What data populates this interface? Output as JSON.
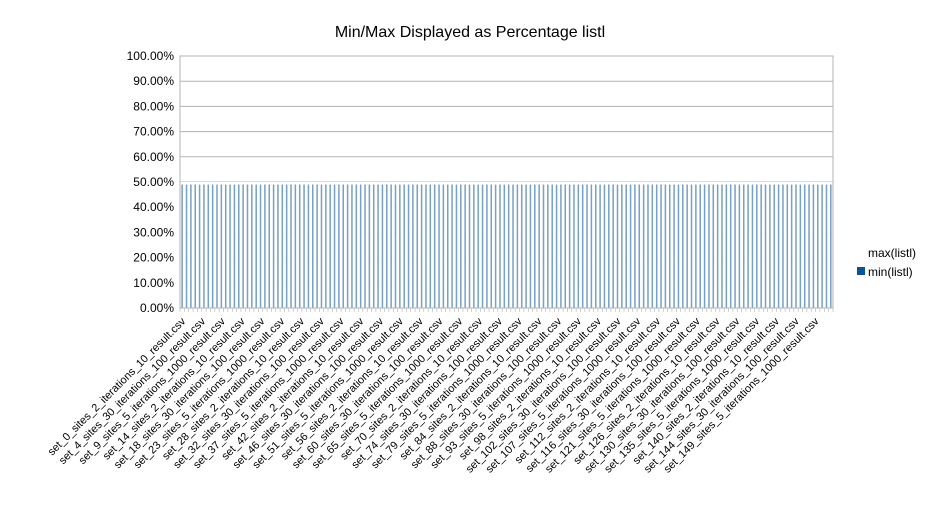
{
  "chart_data": {
    "type": "bar",
    "title": "Min/Max Displayed as Percentage listl",
    "xlabel": "",
    "ylabel": "",
    "ylim": [
      0,
      1
    ],
    "y_tick_labels": [
      "0.00%",
      "10.00%",
      "20.00%",
      "30.00%",
      "40.00%",
      "50.00%",
      "60.00%",
      "70.00%",
      "80.00%",
      "90.00%",
      "100.00%"
    ],
    "grid": true,
    "legend_position": "right",
    "x_tick_labels": [
      "set_0_sites_2_iterations_10_result.csv",
      "set_4_sites_30_iterations_100_result.csv",
      "set_9_sites_5_iterations_1000_result.csv",
      "set_14_sites_2_iterations_10_result.csv",
      "set_18_sites_30_iterations_100_result.csv",
      "set_23_sites_5_iterations_1000_result.csv",
      "set_28_sites_2_iterations_10_result.csv",
      "set_32_sites_30_iterations_100_result.csv",
      "set_37_sites_5_iterations_1000_result.csv",
      "set_42_sites_2_iterations_10_result.csv",
      "set_46_sites_30_iterations_100_result.csv",
      "set_51_sites_5_iterations_1000_result.csv",
      "set_56_sites_2_iterations_10_result.csv",
      "set_60_sites_30_iterations_100_result.csv",
      "set_65_sites_5_iterations_1000_result.csv",
      "set_70_sites_2_iterations_10_result.csv",
      "set_74_sites_30_iterations_100_result.csv",
      "set_79_sites_5_iterations_1000_result.csv",
      "set_84_sites_2_iterations_10_result.csv",
      "set_88_sites_30_iterations_100_result.csv",
      "set_93_sites_5_iterations_1000_result.csv",
      "set_98_sites_2_iterations_10_result.csv",
      "set_102_sites_30_iterations_100_result.csv",
      "set_107_sites_5_iterations_1000_result.csv",
      "set_112_sites_2_iterations_10_result.csv",
      "set_116_sites_30_iterations_100_result.csv",
      "set_121_sites_5_iterations_1000_result.csv",
      "set_126_sites_2_iterations_10_result.csv",
      "set_130_sites_30_iterations_100_result.csv",
      "set_135_sites_5_iterations_1000_result.csv",
      "set_140_sites_2_iterations_10_result.csv",
      "set_144_sites_30_iterations_100_result.csv",
      "set_149_sites_5_iterations_1000_result.csv"
    ],
    "category_count": 150,
    "series": [
      {
        "name": "max(listl)",
        "color": "#ffffff",
        "approx_value": 0.5
      },
      {
        "name": "min(listl)",
        "color": "#0b5394",
        "approx_value": 0.49
      }
    ]
  }
}
